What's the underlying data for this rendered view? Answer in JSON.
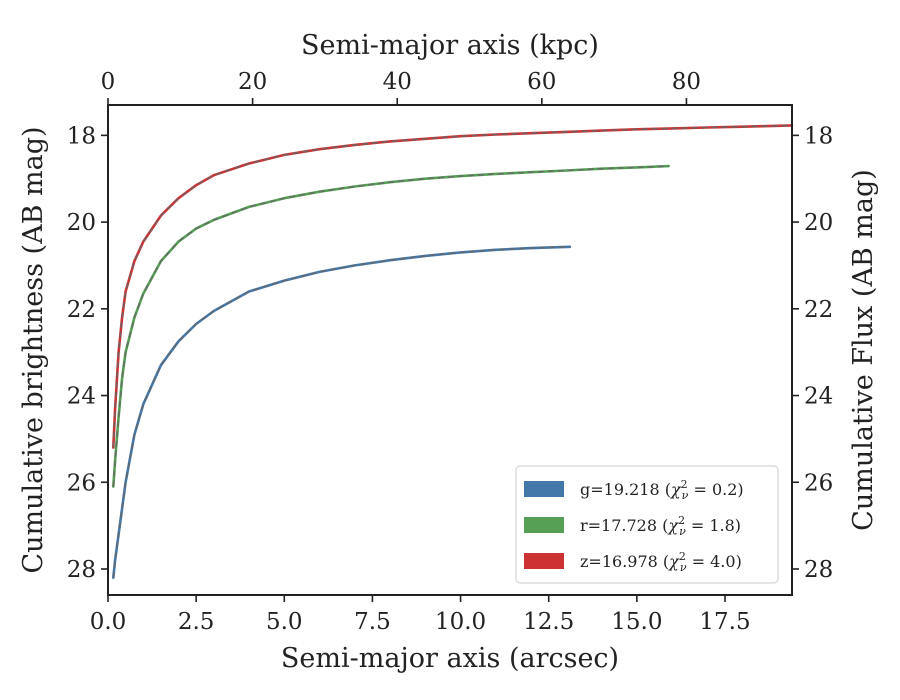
{
  "chart_data": {
    "type": "line",
    "title": "",
    "xlabel": "Semi-major axis (arcsec)",
    "x2label": "Semi-major axis (kpc)",
    "ylabel": "Cumulative brightness (AB mag)",
    "y2label": "Cumulative Flux (AB mag)",
    "xlim": [
      0,
      19.4
    ],
    "x2lim": [
      0,
      94.6
    ],
    "ylim": [
      28.6,
      17.3
    ],
    "y_inverted": true,
    "xticks": [
      "0.0",
      "2.5",
      "5.0",
      "7.5",
      "10.0",
      "12.5",
      "15.0",
      "17.5"
    ],
    "x2ticks": [
      "0",
      "20",
      "40",
      "60",
      "80"
    ],
    "yticks": [
      "18",
      "20",
      "22",
      "24",
      "26",
      "28"
    ],
    "legend_position": "lower-right",
    "series": [
      {
        "name": "g=19.218 (χ²_ν = 0.2)",
        "label_prefix": "g=19.218",
        "chi2": "0.2",
        "color": "#4477aa",
        "x": [
          0.15,
          0.2,
          0.3,
          0.4,
          0.5,
          0.75,
          1.0,
          1.5,
          2.0,
          2.5,
          3.0,
          4.0,
          5.0,
          6.0,
          7.0,
          8.0,
          9.0,
          10.0,
          11.0,
          12.0,
          13.1
        ],
        "y": [
          28.2,
          27.8,
          27.2,
          26.6,
          26.0,
          24.9,
          24.2,
          23.3,
          22.75,
          22.35,
          22.05,
          21.6,
          21.35,
          21.15,
          21.0,
          20.88,
          20.78,
          20.7,
          20.64,
          20.6,
          20.57
        ]
      },
      {
        "name": "r=17.728 (χ²_ν = 1.8)",
        "label_prefix": "r=17.728",
        "chi2": "1.8",
        "color": "#55a055",
        "x": [
          0.15,
          0.2,
          0.3,
          0.4,
          0.5,
          0.75,
          1.0,
          1.5,
          2.0,
          2.5,
          3.0,
          4.0,
          5.0,
          6.0,
          7.0,
          8.0,
          9.0,
          10.0,
          11.0,
          12.0,
          13.0,
          14.0,
          15.0,
          15.9
        ],
        "y": [
          26.1,
          25.5,
          24.5,
          23.6,
          23.0,
          22.2,
          21.65,
          20.9,
          20.45,
          20.15,
          19.95,
          19.65,
          19.45,
          19.3,
          19.18,
          19.08,
          19.0,
          18.94,
          18.89,
          18.85,
          18.81,
          18.77,
          18.74,
          18.71
        ]
      },
      {
        "name": "z=16.978 (χ²_ν = 4.0)",
        "label_prefix": "z=16.978",
        "chi2": "4.0",
        "color": "#cc3333",
        "x": [
          0.15,
          0.2,
          0.3,
          0.4,
          0.5,
          0.75,
          1.0,
          1.5,
          2.0,
          2.5,
          3.0,
          4.0,
          5.0,
          6.0,
          7.0,
          8.0,
          9.0,
          10.0,
          11.0,
          12.0,
          13.0,
          14.0,
          15.0,
          16.0,
          17.0,
          18.0,
          19.0,
          19.4
        ],
        "y": [
          25.2,
          24.3,
          23.0,
          22.2,
          21.6,
          20.9,
          20.45,
          19.85,
          19.45,
          19.15,
          18.92,
          18.65,
          18.45,
          18.32,
          18.22,
          18.14,
          18.08,
          18.02,
          17.98,
          17.95,
          17.92,
          17.89,
          17.86,
          17.84,
          17.82,
          17.8,
          17.78,
          17.77
        ]
      }
    ]
  }
}
